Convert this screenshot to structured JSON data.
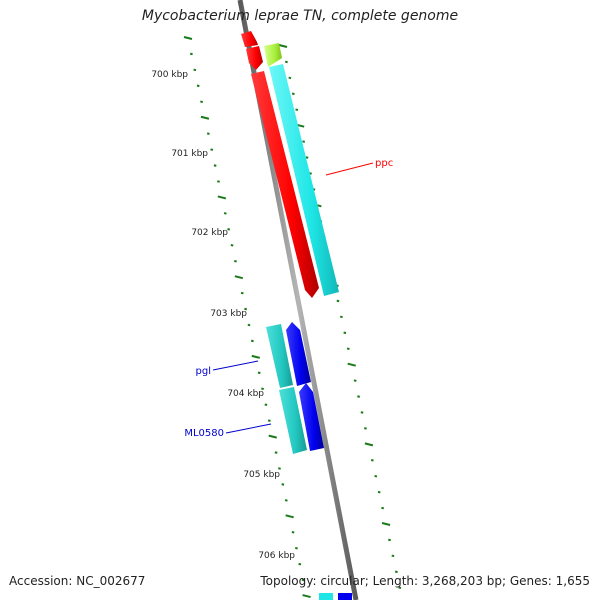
{
  "title": "Mycobacterium leprae TN, complete genome",
  "footer": {
    "accession": "Accession: NC_002677",
    "summary": "Topology: circular; Length: 3,268,203 bp; Genes: 1,655"
  },
  "ruler": {
    "ticks": [
      {
        "pos_kbp": 700,
        "label": "700 kbp"
      },
      {
        "pos_kbp": 701,
        "label": "701 kbp"
      },
      {
        "pos_kbp": 702,
        "label": "702 kbp"
      },
      {
        "pos_kbp": 703,
        "label": "703 kbp"
      },
      {
        "pos_kbp": 704,
        "label": "704 kbp"
      },
      {
        "pos_kbp": 705,
        "label": "705 kbp"
      },
      {
        "pos_kbp": 706,
        "label": "706 kbp"
      }
    ],
    "tick_color": "#1a7a1a"
  },
  "colors": {
    "backbone": "#8a8a8a",
    "red": "#ff0000",
    "green": "#a8f03c",
    "cyan": "#1fe6e6",
    "teal": "#22c7c0",
    "blue": "#0000ee"
  },
  "gene_labels": [
    {
      "name": "ppc",
      "color": "#ff0000"
    },
    {
      "name": "pgl",
      "color": "#0000cc"
    },
    {
      "name": "ML0580",
      "color": "#0000cc"
    }
  ]
}
